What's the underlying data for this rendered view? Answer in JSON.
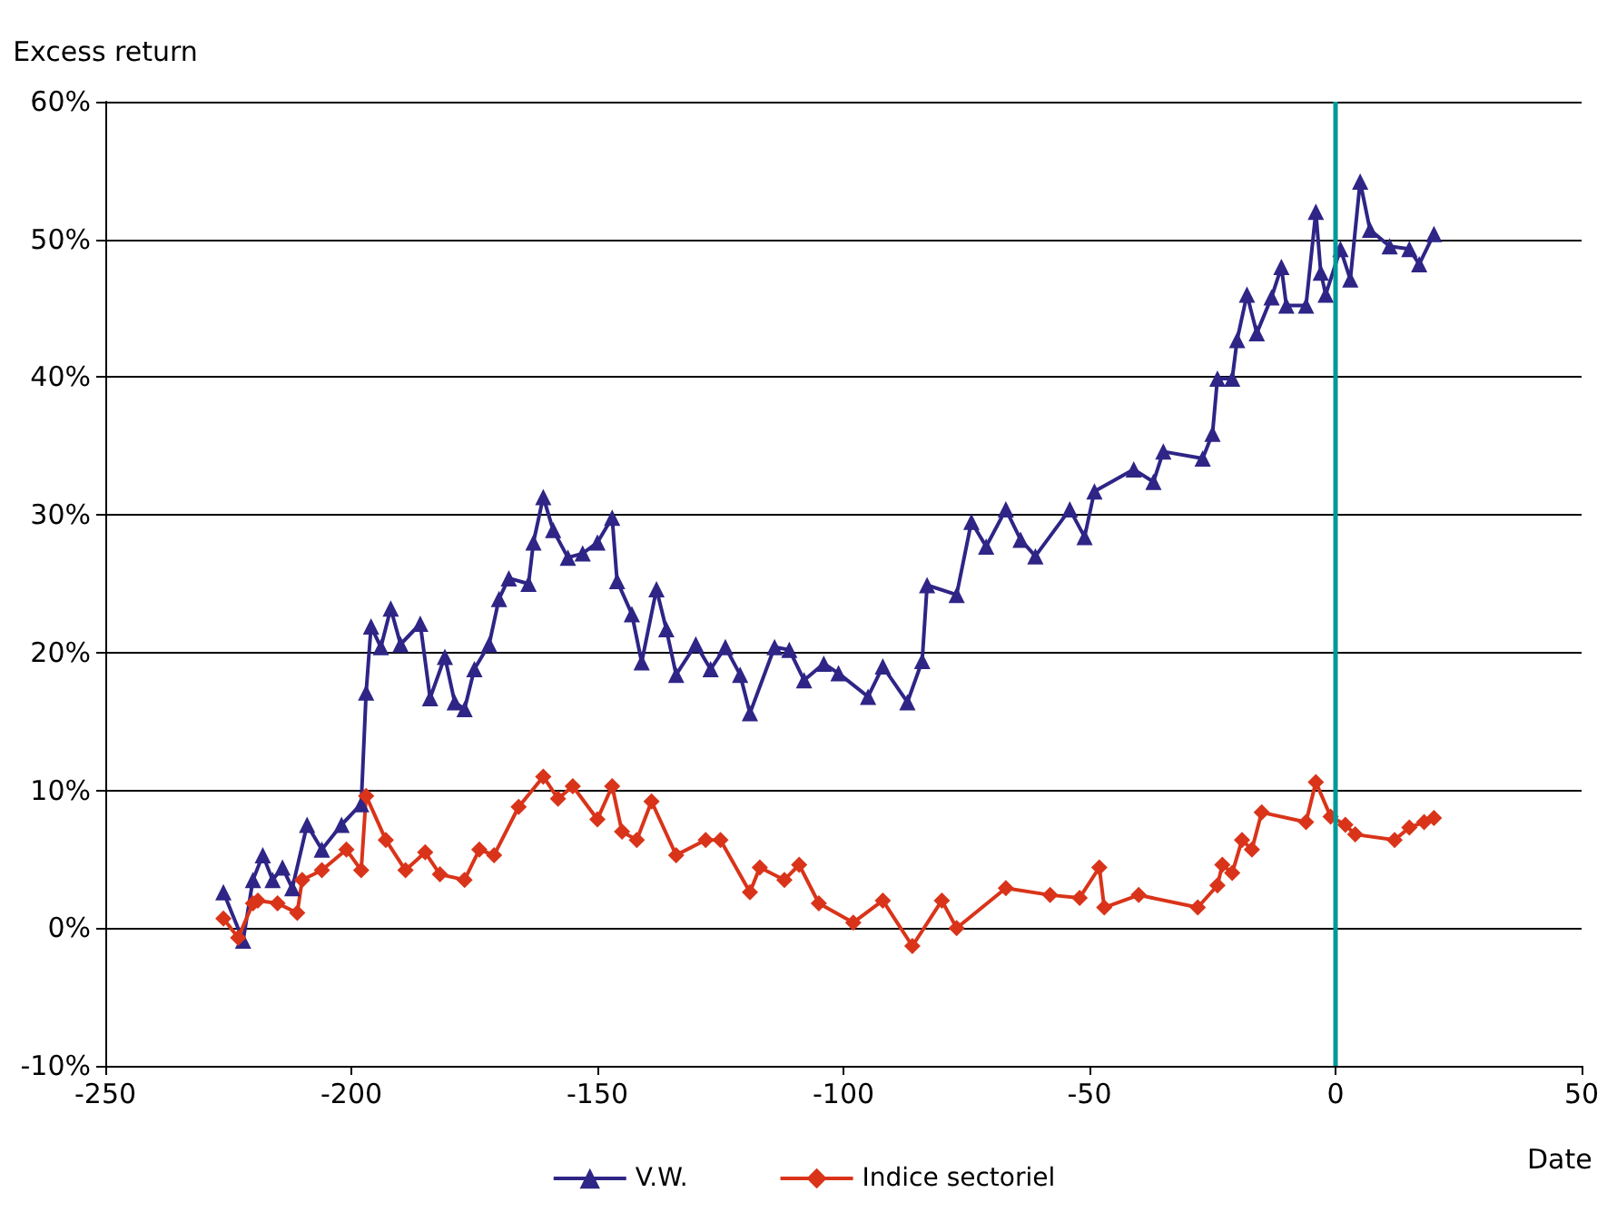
{
  "chart_data": {
    "type": "line",
    "ylabel": "Excess return",
    "xlabel": "Date",
    "xlim": [
      -250,
      50
    ],
    "xticks": [
      -250,
      -200,
      -150,
      -100,
      -50,
      0,
      50
    ],
    "ylim": [
      -10,
      60
    ],
    "yticks": [
      {
        "value": -10,
        "label": "-10%"
      },
      {
        "value": 0,
        "label": "0%"
      },
      {
        "value": 10,
        "label": "10%"
      },
      {
        "value": 20,
        "label": "20%"
      },
      {
        "value": 30,
        "label": "30%"
      },
      {
        "value": 40,
        "label": "40%"
      },
      {
        "value": 50,
        "label": "50%"
      },
      {
        "value": 60,
        "label": "60%"
      }
    ],
    "grid": "y",
    "legend": "bottom",
    "ref_lines": [
      {
        "axis": "x",
        "value": 0,
        "color": "#009999"
      }
    ],
    "series": [
      {
        "name": "V.W.",
        "color": "#2e2586",
        "marker": "triangle",
        "x": [
          -226,
          -222,
          -220,
          -218,
          -216,
          -214,
          -212,
          -209,
          -206,
          -202,
          -198,
          -197,
          -196,
          -194,
          -192,
          -190,
          -186,
          -184,
          -181,
          -179,
          -177,
          -175,
          -172,
          -170,
          -168,
          -164,
          -163,
          -161,
          -159,
          -156,
          -153,
          -150,
          -147,
          -146,
          -143,
          -141,
          -138,
          -136,
          -134,
          -130,
          -127,
          -124,
          -121,
          -119,
          -114,
          -111,
          -108,
          -104,
          -101,
          -95,
          -92,
          -87,
          -84,
          -83,
          -77,
          -74,
          -71,
          -67,
          -64,
          -61,
          -54,
          -51,
          -49,
          -41,
          -37,
          -35,
          -27,
          -25,
          -24,
          -21,
          -20,
          -18,
          -16,
          -13,
          -11,
          -10,
          -6,
          -4,
          -3,
          -2,
          1,
          3,
          5,
          7,
          11,
          15,
          17,
          20
        ],
        "values": [
          2.6,
          -0.9,
          3.5,
          5.3,
          3.5,
          4.4,
          2.9,
          7.5,
          5.7,
          7.5,
          9,
          17.1,
          21.9,
          20.4,
          23.2,
          20.6,
          22.1,
          16.7,
          19.7,
          16.4,
          15.9,
          18.8,
          20.6,
          23.9,
          25.4,
          25,
          28,
          31.3,
          28.9,
          26.9,
          27.2,
          28,
          29.8,
          25.2,
          22.8,
          19.3,
          24.6,
          21.7,
          18.4,
          20.6,
          18.8,
          20.4,
          18.4,
          15.6,
          20.4,
          20.2,
          18,
          19.2,
          18.5,
          16.8,
          19,
          16.4,
          19.4,
          24.9,
          24.2,
          29.5,
          27.7,
          30.4,
          28.2,
          27,
          30.4,
          28.4,
          31.7,
          33.3,
          32.4,
          34.6,
          34.1,
          35.9,
          39.9,
          39.9,
          42.7,
          46,
          43.2,
          45.8,
          48,
          45.2,
          45.2,
          52,
          47.6,
          46,
          49.3,
          47.1,
          54.2,
          50.7,
          49.5,
          49.3,
          48.2,
          50.4
        ]
      },
      {
        "name": "Indice sectoriel",
        "color": "#d9341a",
        "marker": "diamond",
        "x": [
          -226,
          -223,
          -220,
          -219,
          -215,
          -211,
          -210,
          -206,
          -201,
          -198,
          -197,
          -193,
          -189,
          -185,
          -182,
          -177,
          -174,
          -171,
          -166,
          -161,
          -158,
          -155,
          -150,
          -147,
          -145,
          -142,
          -139,
          -134,
          -128,
          -125,
          -119,
          -117,
          -112,
          -109,
          -105,
          -98,
          -92,
          -86,
          -80,
          -77,
          -67,
          -58,
          -52,
          -48,
          -47,
          -40,
          -28,
          -24,
          -23,
          -21,
          -19,
          -17,
          -15,
          -6,
          -4,
          -1,
          2,
          4,
          12,
          15,
          18,
          20
        ],
        "values": [
          0.7,
          -0.7,
          1.8,
          2,
          1.8,
          1.1,
          3.5,
          4.2,
          5.7,
          4.2,
          9.6,
          6.4,
          4.2,
          5.5,
          3.9,
          3.5,
          5.7,
          5.3,
          8.8,
          11,
          9.4,
          10.3,
          7.9,
          10.3,
          7,
          6.4,
          9.2,
          5.3,
          6.4,
          6.4,
          2.6,
          4.4,
          3.5,
          4.6,
          1.8,
          0.4,
          2,
          -1.3,
          2,
          0,
          2.9,
          2.4,
          2.2,
          4.4,
          1.5,
          2.4,
          1.5,
          3.1,
          4.6,
          4,
          6.4,
          5.7,
          8.4,
          7.7,
          10.6,
          8.1,
          7.5,
          6.8,
          6.4,
          7.3,
          7.7,
          8
        ]
      }
    ]
  }
}
